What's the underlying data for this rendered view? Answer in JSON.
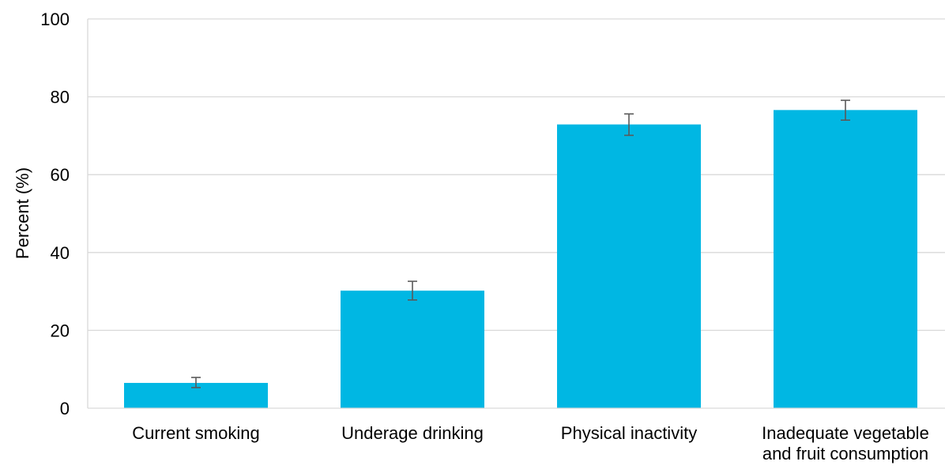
{
  "chart_data": {
    "type": "bar",
    "title": "",
    "xlabel": "",
    "ylabel": "Percent (%)",
    "ylim": [
      0,
      100
    ],
    "yticks": [
      0,
      20,
      40,
      60,
      80,
      100
    ],
    "grid": true,
    "legend": "none",
    "categories": [
      [
        "Current smoking"
      ],
      [
        "Underage drinking"
      ],
      [
        "Physical inactivity"
      ],
      [
        "Inadequate vegetable",
        "and fruit consumption"
      ]
    ],
    "values": [
      6.5,
      30.2,
      72.9,
      76.6
    ],
    "error_bars": [
      {
        "low": 5.3,
        "high": 7.9
      },
      {
        "low": 27.8,
        "high": 32.6
      },
      {
        "low": 70.1,
        "high": 75.6
      },
      {
        "low": 74.0,
        "high": 79.1
      }
    ],
    "colors": {
      "bar": "#00B7E3",
      "error_bar": "#5a5a5a",
      "grid": "#d9d9d9",
      "text": "#000000"
    }
  }
}
